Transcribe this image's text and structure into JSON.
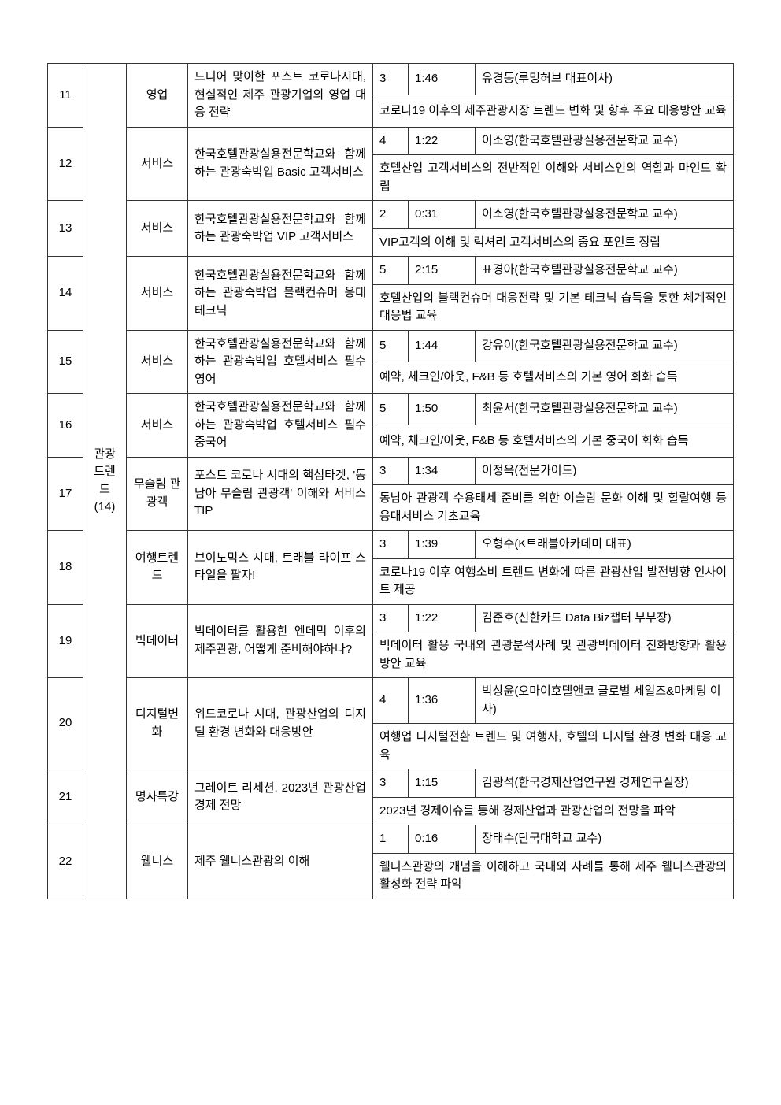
{
  "group": {
    "label": "관광 트렌드 (14)"
  },
  "rows": [
    {
      "num": "11",
      "category": "영업",
      "title": "드디어 맞이한 포스트 코로나시대, 현실적인 제주 관광기업의 영업 대응 전략",
      "count": "3",
      "duration": "1:46",
      "instructor": "유경동(루밍허브 대표이사)",
      "description": "코로나19 이후의 제주관광시장 트렌드 변화 및 향후 주요 대응방안 교육"
    },
    {
      "num": "12",
      "category": "서비스",
      "title": "한국호텔관광실용전문학교와 함께하는 관광숙박업 Basic 고객서비스",
      "count": "4",
      "duration": "1:22",
      "instructor": "이소영(한국호텔관광실용전문학교 교수)",
      "description": "호텔산업 고객서비스의 전반적인 이해와 서비스인의 역할과 마인드 확립"
    },
    {
      "num": "13",
      "category": "서비스",
      "title": "한국호텔관광실용전문학교와 함께하는 관광숙박업 VIP 고객서비스",
      "count": "2",
      "duration": "0:31",
      "instructor": "이소영(한국호텔관광실용전문학교 교수)",
      "description": "VIP고객의 이해 및 럭셔리 고객서비스의 중요 포인트 정립"
    },
    {
      "num": "14",
      "category": "서비스",
      "title": "한국호텔관광실용전문학교와 함께하는 관광숙박업 블랙컨슈머 응대 테크닉",
      "count": "5",
      "duration": "2:15",
      "instructor": "표경아(한국호텔관광실용전문학교 교수)",
      "description": "호텔산업의 블랙컨슈머 대응전략 및 기본 테크닉 습득을 통한 체계적인 대응법 교육"
    },
    {
      "num": "15",
      "category": "서비스",
      "title": "한국호텔관광실용전문학교와 함께하는 관광숙박업 호텔서비스 필수 영어",
      "count": "5",
      "duration": "1:44",
      "instructor": "강유이(한국호텔관광실용전문학교 교수)",
      "description": "예약, 체크인/아웃, F&B 등 호텔서비스의 기본 영어 회화 습득"
    },
    {
      "num": "16",
      "category": "서비스",
      "title": "한국호텔관광실용전문학교와 함께하는 관광숙박업 호텔서비스 필수 중국어",
      "count": "5",
      "duration": "1:50",
      "instructor": "최윤서(한국호텔관광실용전문학교 교수)",
      "description": "예약, 체크인/아웃, F&B 등 호텔서비스의 기본 중국어 회화 습득"
    },
    {
      "num": "17",
      "category": "무슬림 관광객",
      "title": "포스트 코로나 시대의 핵심타겟, '동남아 무슬림 관광객' 이해와 서비스 TIP",
      "count": "3",
      "duration": "1:34",
      "instructor": "이정옥(전문가이드)",
      "description": "동남아 관광객 수용태세 준비를 위한 이슬람 문화 이해 및 할랄여행 등 응대서비스 기초교육"
    },
    {
      "num": "18",
      "category": "여행트렌드",
      "title": "브이노믹스 시대, 트래블 라이프 스타일을 팔자!",
      "count": "3",
      "duration": "1:39",
      "instructor": "오형수(K트래블아카데미 대표)",
      "description": "코로나19 이후 여행소비 트렌드 변화에 따른 관광산업 발전방향 인사이트 제공"
    },
    {
      "num": "19",
      "category": "빅데이터",
      "title": "빅데이터를 활용한 엔데믹 이후의 제주관광, 어떻게 준비해야하나?",
      "count": "3",
      "duration": "1:22",
      "instructor": "김준호(신한카드 Data Biz챕터 부부장)",
      "description": "빅데이터 활용 국내외 관광분석사례 및 관광빅데이터 진화방향과 활용방안 교육"
    },
    {
      "num": "20",
      "category": "디지털변화",
      "title": "위드코로나 시대, 관광산업의 디지털 환경 변화와 대응방안",
      "count": "4",
      "duration": "1:36",
      "instructor": "박상윤(오마이호텔앤코 글로벌 세일즈&마케팅 이사)",
      "description": "여행업 디지털전환 트렌드 및 여행사, 호텔의 디지털 환경 변화 대응 교육"
    },
    {
      "num": "21",
      "category": "명사특강",
      "title": "그레이트 리세션,\n2023년 관광산업 경제 전망",
      "count": "3",
      "duration": "1:15",
      "instructor": "김광석(한국경제산업연구원 경제연구실장)",
      "description": "2023년 경제이슈를 통해 경제산업과 관광산업의 전망을 파악"
    },
    {
      "num": "22",
      "category": "웰니스",
      "title": "제주 웰니스관광의 이해",
      "count": "1",
      "duration": "0:16",
      "instructor": "장태수(단국대학교 교수)",
      "description": "웰니스관광의 개념을 이해하고 국내외 사례를 통해 제주 웰니스관광의 활성화 전략 파악"
    }
  ]
}
